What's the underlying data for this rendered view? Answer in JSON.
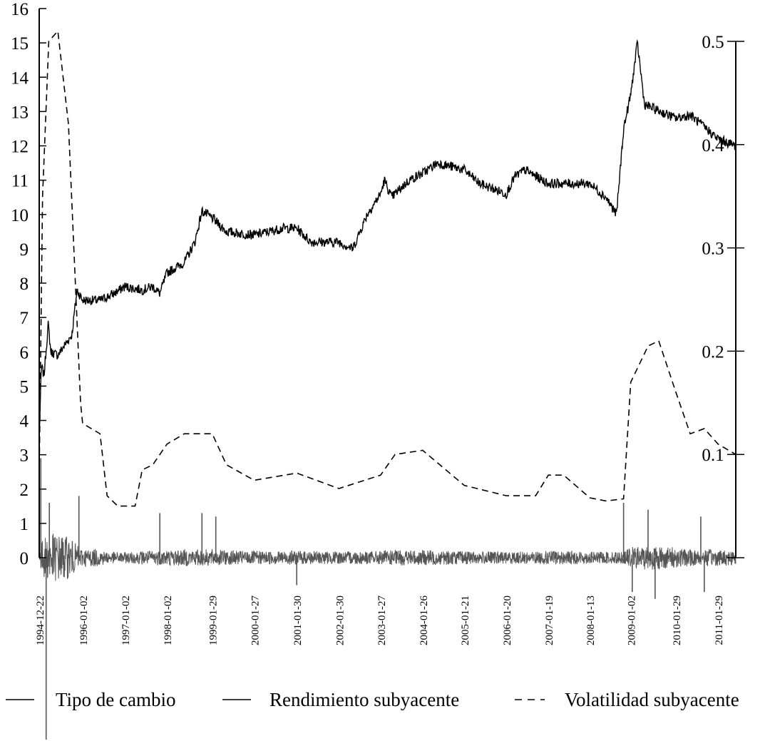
{
  "chart_data": {
    "type": "line",
    "title": "",
    "xlabel": "",
    "ylabel": "",
    "x_ticks": [
      "1994-12-22",
      "1996-01-02",
      "1997-01-02",
      "1998-01-02",
      "1999-01-29",
      "2000-01-27",
      "2001-01-30",
      "2002-01-30",
      "2003-01-27",
      "2004-01-26",
      "2005-01-21",
      "2006-01-20",
      "2007-01-19",
      "2008-01-13",
      "2009-01-02",
      "2010-01-29",
      "2011-01-29"
    ],
    "xlim": [
      "1994-12-22",
      "2011-07-01"
    ],
    "y_left": {
      "ticks": [
        0,
        1,
        2,
        3,
        4,
        5,
        6,
        7,
        8,
        9,
        10,
        11,
        12,
        13,
        14,
        15,
        16
      ],
      "ylim": [
        0,
        16
      ]
    },
    "y_right": {
      "ticks": [
        0.1,
        0.2,
        0.3,
        0.4,
        0.5
      ],
      "ylim": [
        0,
        0.5
      ]
    },
    "grid": false,
    "legend": "bottom",
    "series": [
      {
        "name": "Tipo de cambio",
        "axis": "left",
        "style": "solid",
        "color": "#000000",
        "points": [
          [
            "1994-12-22",
            3.5
          ],
          [
            "1995-01-10",
            5.6
          ],
          [
            "1995-02-01",
            5.3
          ],
          [
            "1995-03-10",
            6.8
          ],
          [
            "1995-04-01",
            6.0
          ],
          [
            "1995-06-01",
            5.9
          ],
          [
            "1995-08-01",
            6.2
          ],
          [
            "1995-10-01",
            6.5
          ],
          [
            "1995-11-15",
            7.8
          ],
          [
            "1996-01-02",
            7.5
          ],
          [
            "1996-06-01",
            7.5
          ],
          [
            "1996-10-01",
            7.7
          ],
          [
            "1997-01-02",
            7.9
          ],
          [
            "1997-06-01",
            7.8
          ],
          [
            "1997-09-01",
            7.9
          ],
          [
            "1997-11-01",
            7.7
          ],
          [
            "1998-01-02",
            8.3
          ],
          [
            "1998-06-01",
            8.6
          ],
          [
            "1998-09-01",
            9.2
          ],
          [
            "1998-11-01",
            10.1
          ],
          [
            "1999-01-29",
            9.9
          ],
          [
            "1999-06-01",
            9.5
          ],
          [
            "2000-01-27",
            9.4
          ],
          [
            "2000-06-01",
            9.5
          ],
          [
            "2000-10-01",
            9.6
          ],
          [
            "2001-01-30",
            9.6
          ],
          [
            "2001-06-01",
            9.2
          ],
          [
            "2001-10-01",
            9.2
          ],
          [
            "2002-01-30",
            9.2
          ],
          [
            "2002-06-01",
            9.0
          ],
          [
            "2002-10-01",
            10.0
          ],
          [
            "2003-01-27",
            10.6
          ],
          [
            "2003-03-01",
            11.0
          ],
          [
            "2003-05-01",
            10.5
          ],
          [
            "2003-10-01",
            11.0
          ],
          [
            "2004-01-26",
            11.2
          ],
          [
            "2004-06-01",
            11.5
          ],
          [
            "2005-01-21",
            11.3
          ],
          [
            "2005-06-01",
            10.9
          ],
          [
            "2006-01-20",
            10.6
          ],
          [
            "2006-04-01",
            11.1
          ],
          [
            "2006-07-01",
            11.3
          ],
          [
            "2007-01-19",
            10.9
          ],
          [
            "2007-06-01",
            10.9
          ],
          [
            "2008-01-13",
            10.9
          ],
          [
            "2008-06-01",
            10.5
          ],
          [
            "2008-09-01",
            10.0
          ],
          [
            "2008-11-01",
            12.5
          ],
          [
            "2009-01-02",
            13.5
          ],
          [
            "2009-03-01",
            15.0
          ],
          [
            "2009-05-01",
            13.2
          ],
          [
            "2010-01-29",
            12.8
          ],
          [
            "2010-06-01",
            12.9
          ],
          [
            "2011-01-29",
            12.2
          ],
          [
            "2011-07-01",
            12.0
          ]
        ]
      },
      {
        "name": "Rendimiento subyacente",
        "axis": "left",
        "style": "solid",
        "color": "#555555",
        "typical_amplitude": 0.3,
        "spikes": [
          [
            "1995-01-05",
            2.9
          ],
          [
            "1995-02-20",
            -5.3
          ],
          [
            "1995-03-20",
            1.6
          ],
          [
            "1995-12-01",
            1.8
          ],
          [
            "1997-11-01",
            1.3
          ],
          [
            "1998-11-01",
            1.3
          ],
          [
            "1999-03-01",
            1.2
          ],
          [
            "2001-01-30",
            -0.8
          ],
          [
            "2008-11-01",
            1.6
          ],
          [
            "2009-01-15",
            -1.0
          ],
          [
            "2009-06-01",
            1.4
          ],
          [
            "2009-08-01",
            -1.2
          ],
          [
            "2010-09-01",
            1.2
          ],
          [
            "2010-10-01",
            -1.0
          ]
        ]
      },
      {
        "name": "Volatilidad subyacente",
        "axis": "right",
        "style": "dashed",
        "color": "#000000",
        "points": [
          [
            "1994-12-22",
            0.08
          ],
          [
            "1995-01-20",
            0.35
          ],
          [
            "1995-03-15",
            0.5
          ],
          [
            "1995-06-01",
            0.51
          ],
          [
            "1995-09-01",
            0.42
          ],
          [
            "1995-12-15",
            0.15
          ],
          [
            "1996-01-02",
            0.13
          ],
          [
            "1996-06-01",
            0.12
          ],
          [
            "1996-08-01",
            0.06
          ],
          [
            "1996-11-01",
            0.05
          ],
          [
            "1997-04-01",
            0.05
          ],
          [
            "1997-06-01",
            0.085
          ],
          [
            "1997-09-01",
            0.09
          ],
          [
            "1998-01-02",
            0.11
          ],
          [
            "1998-06-01",
            0.12
          ],
          [
            "1999-01-29",
            0.12
          ],
          [
            "1999-06-01",
            0.09
          ],
          [
            "2000-01-27",
            0.075
          ],
          [
            "2001-01-30",
            0.082
          ],
          [
            "2002-01-30",
            0.067
          ],
          [
            "2003-01-27",
            0.08
          ],
          [
            "2003-06-01",
            0.1
          ],
          [
            "2004-01-26",
            0.104
          ],
          [
            "2005-01-21",
            0.07
          ],
          [
            "2006-01-20",
            0.06
          ],
          [
            "2006-10-01",
            0.06
          ],
          [
            "2007-01-19",
            0.08
          ],
          [
            "2007-06-01",
            0.08
          ],
          [
            "2008-01-13",
            0.058
          ],
          [
            "2008-06-01",
            0.055
          ],
          [
            "2008-11-01",
            0.057
          ],
          [
            "2009-01-02",
            0.17
          ],
          [
            "2009-06-01",
            0.205
          ],
          [
            "2009-09-01",
            0.21
          ],
          [
            "2010-01-29",
            0.16
          ],
          [
            "2010-06-01",
            0.12
          ],
          [
            "2010-10-01",
            0.125
          ],
          [
            "2011-01-29",
            0.11
          ],
          [
            "2011-07-01",
            0.1
          ]
        ]
      }
    ]
  },
  "legend": {
    "items": [
      {
        "label": "Tipo de cambio",
        "style": "solid"
      },
      {
        "label": "Rendimiento subyacente",
        "style": "solid"
      },
      {
        "label": "Volatilidad subyacente",
        "style": "dashed"
      }
    ]
  }
}
